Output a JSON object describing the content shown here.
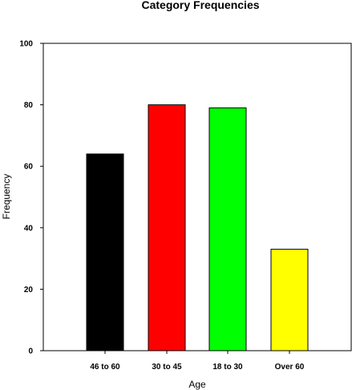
{
  "chart_data": {
    "type": "bar",
    "title": "Category Frequencies",
    "xlabel": "Age",
    "ylabel": "Frequency",
    "categories": [
      "46 to 60",
      "30 to 45",
      "18 to 30",
      "Over 60"
    ],
    "values": [
      64,
      80,
      79,
      33
    ],
    "colors": [
      "#000000",
      "#ff0000",
      "#00ff00",
      "#ffff00"
    ],
    "ylim": [
      0,
      100
    ],
    "yticks": [
      "0",
      "20",
      "40",
      "60",
      "80",
      "100"
    ],
    "grid": false,
    "legend": "none"
  }
}
